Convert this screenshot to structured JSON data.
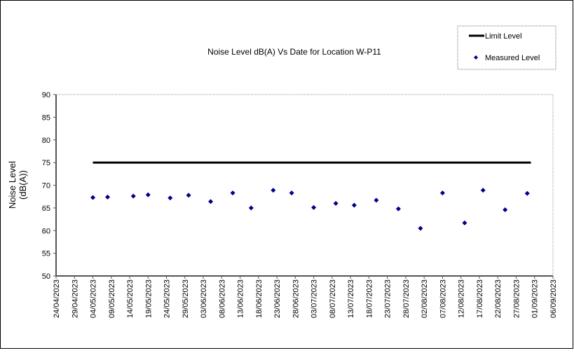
{
  "chart_data": {
    "type": "scatter",
    "title": "Noise Level dB(A) Vs Date for Location W-P11",
    "ylabel": [
      "Noise Level",
      "(dB(A))"
    ],
    "xlabel": "",
    "ylim": [
      50,
      90
    ],
    "yticks": [
      50,
      55,
      60,
      65,
      70,
      75,
      80,
      85,
      90
    ],
    "xlim": [
      "24/04/2023",
      "06/09/2023"
    ],
    "xticks": [
      "24/04/2023",
      "29/04/2023",
      "04/05/2023",
      "09/05/2023",
      "14/05/2023",
      "19/05/2023",
      "24/05/2023",
      "29/05/2023",
      "03/06/2023",
      "08/06/2023",
      "13/06/2023",
      "18/06/2023",
      "23/06/2023",
      "28/06/2023",
      "03/07/2023",
      "08/07/2023",
      "13/07/2023",
      "18/07/2023",
      "23/07/2023",
      "28/07/2023",
      "02/08/2023",
      "07/08/2023",
      "12/08/2023",
      "17/08/2023",
      "22/08/2023",
      "27/08/2023",
      "01/09/2023",
      "06/09/2023"
    ],
    "grid": false,
    "legend_position": "top-right",
    "series": [
      {
        "name": "Limit Level",
        "kind": "line",
        "color": "#000000",
        "x": [
          "04/05/2023",
          "31/08/2023"
        ],
        "y": [
          75,
          75
        ]
      },
      {
        "name": "Measured Level",
        "kind": "scatter",
        "color": "#00008B",
        "x": [
          "04/05/2023",
          "08/05/2023",
          "15/05/2023",
          "19/05/2023",
          "25/05/2023",
          "30/05/2023",
          "05/06/2023",
          "11/06/2023",
          "16/06/2023",
          "22/06/2023",
          "27/06/2023",
          "03/07/2023",
          "09/07/2023",
          "14/07/2023",
          "20/07/2023",
          "26/07/2023",
          "01/08/2023",
          "07/08/2023",
          "13/08/2023",
          "18/08/2023",
          "24/08/2023",
          "30/08/2023"
        ],
        "y": [
          67.3,
          67.4,
          67.6,
          67.9,
          67.2,
          67.8,
          66.4,
          68.3,
          65.0,
          68.9,
          68.3,
          65.1,
          66.0,
          65.6,
          66.7,
          64.8,
          60.5,
          68.3,
          61.7,
          68.9,
          64.6,
          68.2
        ]
      }
    ]
  }
}
